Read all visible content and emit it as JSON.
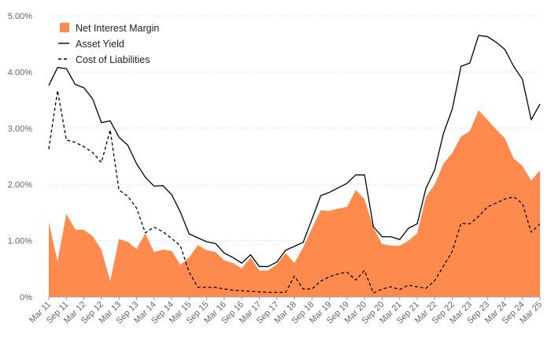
{
  "chart_data": {
    "type": "area",
    "title": "",
    "xlabel": "",
    "ylabel": "",
    "ylim": [
      0,
      5
    ],
    "y_ticks": [
      "0%",
      "1.00%",
      "2.00%",
      "3.00%",
      "4.00%",
      "5.00%"
    ],
    "x_tick_labels": [
      "Mar 11",
      "Sep 11",
      "Mar 12",
      "Sep 12",
      "Mar 13",
      "Sep 13",
      "Mar 14",
      "Sep 14",
      "Mar 15",
      "Sep 15",
      "Mar 16",
      "Sep 16",
      "Mar 17",
      "Sep 17",
      "Mar 18",
      "Sep 18",
      "Mar 19",
      "Sep 19",
      "Mar 20",
      "Sep 20",
      "Mar 21",
      "Sep 21",
      "Mar 22",
      "Sep 22",
      "Mar 23",
      "Sep 23",
      "Mar 24",
      "Sep 24",
      "Mar 25"
    ],
    "grid": "horizontal",
    "legend_position": "top-left",
    "x": [
      "Mar 11",
      "Jun 11",
      "Sep 11",
      "Dec 11",
      "Mar 12",
      "Jun 12",
      "Sep 12",
      "Dec 12",
      "Mar 13",
      "Jun 13",
      "Sep 13",
      "Dec 13",
      "Mar 14",
      "Jun 14",
      "Sep 14",
      "Dec 14",
      "Mar 15",
      "Jun 15",
      "Sep 15",
      "Dec 15",
      "Mar 16",
      "Jun 16",
      "Sep 16",
      "Dec 16",
      "Mar 17",
      "Jun 17",
      "Sep 17",
      "Dec 17",
      "Mar 18",
      "Jun 18",
      "Sep 18",
      "Dec 18",
      "Mar 19",
      "Jun 19",
      "Sep 19",
      "Dec 19",
      "Mar 20",
      "Jun 20",
      "Sep 20",
      "Dec 20",
      "Mar 21",
      "Jun 21",
      "Sep 21",
      "Dec 21",
      "Mar 22",
      "Jun 22",
      "Sep 22",
      "Dec 22",
      "Mar 23",
      "Jun 23",
      "Sep 23",
      "Dec 23",
      "Mar 24",
      "Jun 24",
      "Sep 24",
      "Dec 24",
      "Mar 25"
    ],
    "series": [
      {
        "name": "Net Interest Margin",
        "style": "area",
        "color": "#ff8a4d",
        "values": [
          1.33,
          0.63,
          1.48,
          1.2,
          1.19,
          1.08,
          0.84,
          0.28,
          1.03,
          0.98,
          0.85,
          1.13,
          0.8,
          0.84,
          0.82,
          0.57,
          0.7,
          0.92,
          0.83,
          0.8,
          0.65,
          0.6,
          0.51,
          0.7,
          0.47,
          0.47,
          0.58,
          0.78,
          0.6,
          0.88,
          1.22,
          1.54,
          1.53,
          1.57,
          1.6,
          1.9,
          1.74,
          1.23,
          0.94,
          0.91,
          0.91,
          1.0,
          1.13,
          1.78,
          2.0,
          2.37,
          2.56,
          2.85,
          2.95,
          3.32,
          3.15,
          2.98,
          2.82,
          2.46,
          2.33,
          2.07,
          2.25
        ]
      },
      {
        "name": "Asset Yield",
        "style": "solid",
        "color": "#000000",
        "values": [
          3.76,
          4.08,
          4.06,
          3.78,
          3.72,
          3.52,
          3.1,
          3.13,
          2.84,
          2.7,
          2.37,
          2.13,
          1.97,
          1.98,
          1.82,
          1.51,
          1.12,
          1.05,
          0.98,
          0.95,
          0.78,
          0.7,
          0.6,
          0.75,
          0.54,
          0.54,
          0.62,
          0.83,
          0.9,
          0.97,
          1.38,
          1.8,
          1.86,
          1.94,
          2.02,
          2.17,
          2.17,
          1.25,
          1.07,
          1.07,
          1.02,
          1.22,
          1.3,
          1.93,
          2.26,
          2.91,
          3.34,
          4.1,
          4.16,
          4.65,
          4.63,
          4.53,
          4.4,
          4.1,
          3.87,
          3.15,
          3.43
        ]
      },
      {
        "name": "Cost of Liabilities",
        "style": "dashed",
        "color": "#000000",
        "values": [
          2.63,
          3.67,
          2.79,
          2.75,
          2.67,
          2.57,
          2.39,
          2.97,
          1.9,
          1.79,
          1.58,
          1.14,
          1.24,
          1.16,
          1.04,
          0.91,
          0.44,
          0.17,
          0.17,
          0.17,
          0.14,
          0.12,
          0.11,
          0.1,
          0.09,
          0.08,
          0.08,
          0.08,
          0.37,
          0.14,
          0.14,
          0.28,
          0.36,
          0.41,
          0.44,
          0.3,
          0.47,
          0.07,
          0.14,
          0.18,
          0.13,
          0.21,
          0.18,
          0.15,
          0.29,
          0.55,
          0.81,
          1.31,
          1.3,
          1.43,
          1.6,
          1.67,
          1.74,
          1.78,
          1.66,
          1.15,
          1.3
        ]
      }
    ]
  }
}
